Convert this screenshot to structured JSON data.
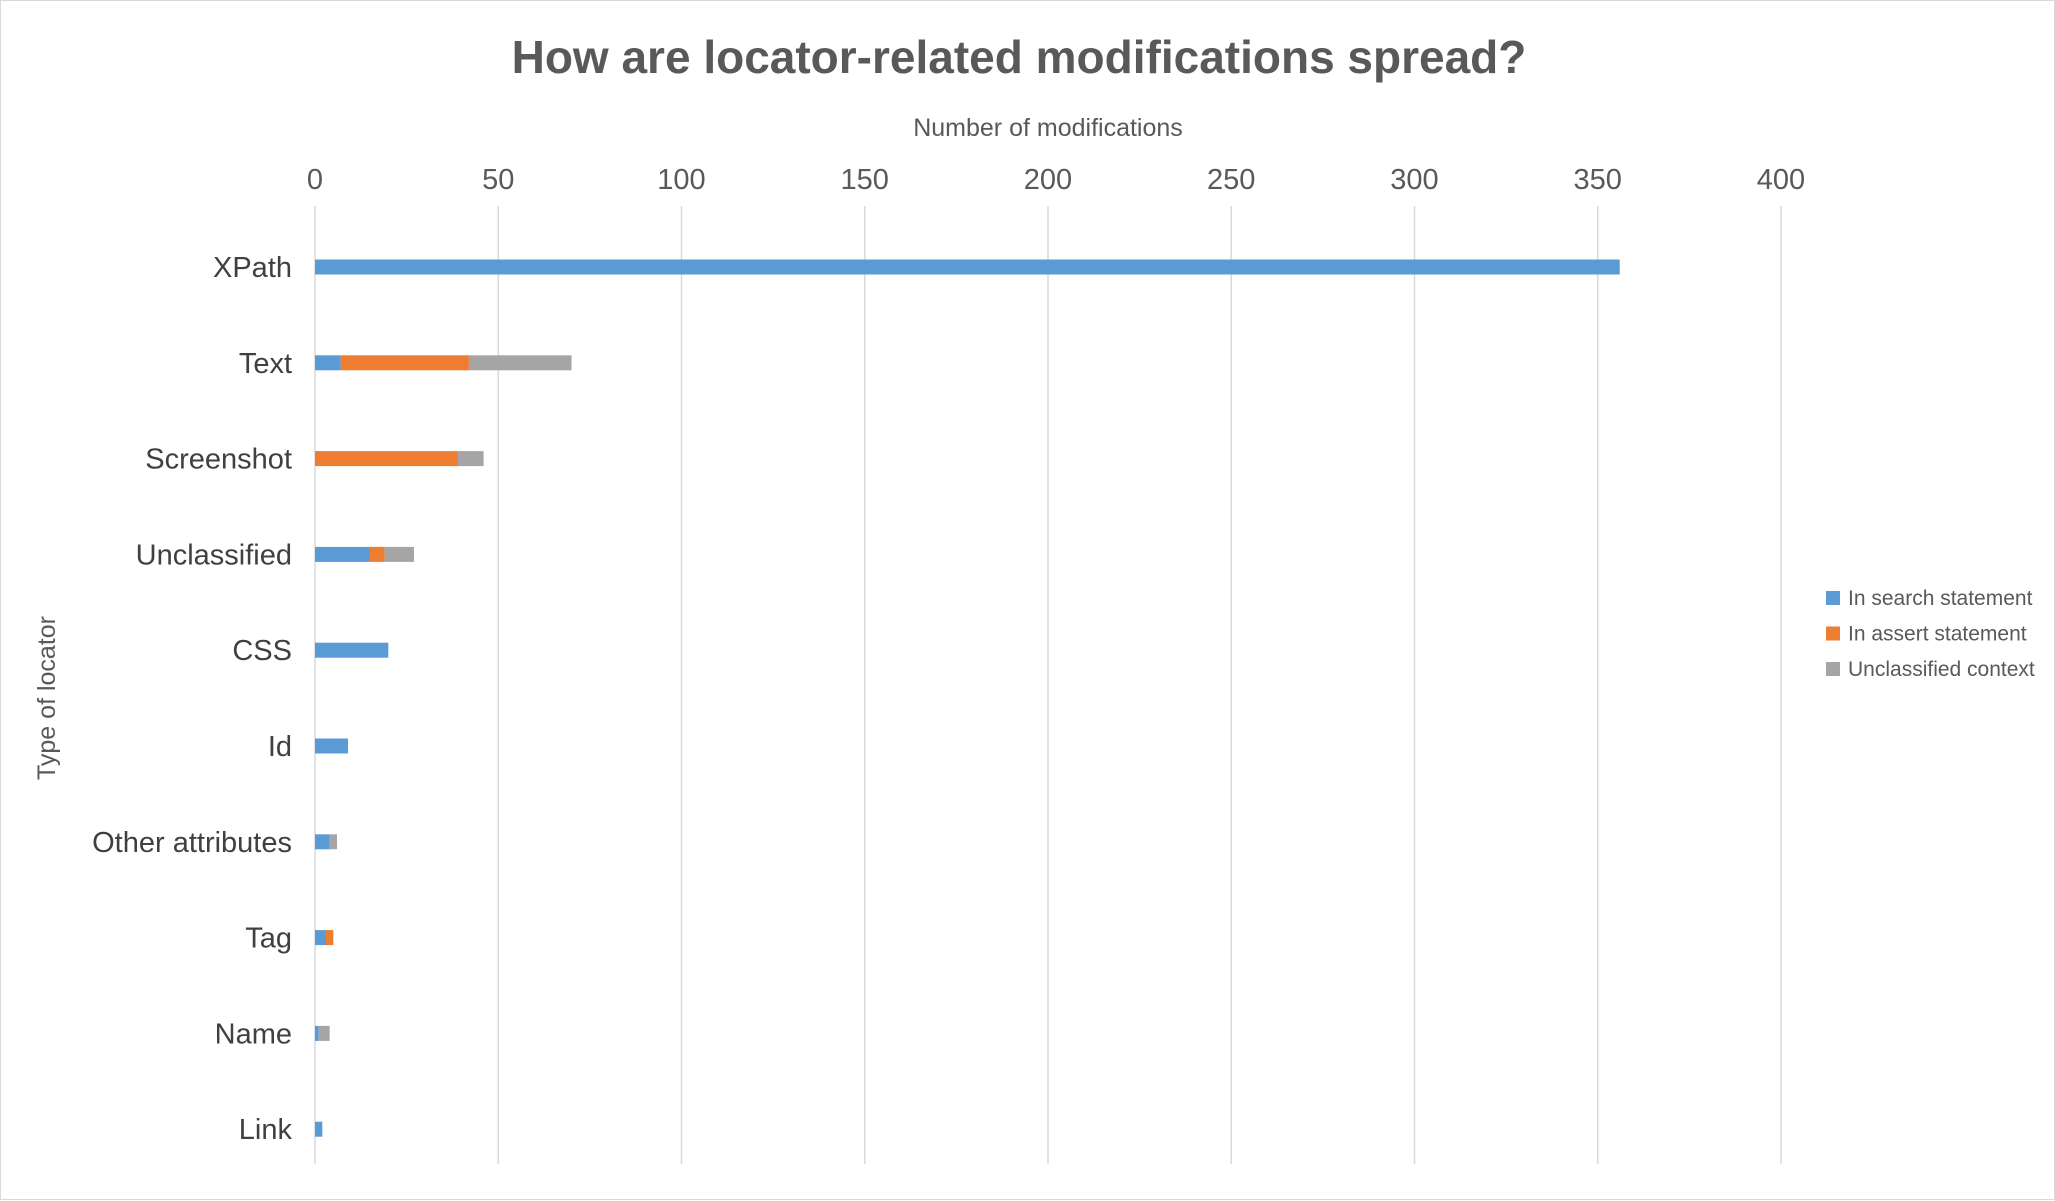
{
  "chart_data": {
    "type": "bar",
    "orientation": "horizontal",
    "stacked": true,
    "title": "How are locator-related modifications spread?",
    "xlabel": "Number of modifications",
    "ylabel": "Type of locator",
    "xlim": [
      0,
      400
    ],
    "xticks": [
      0,
      50,
      100,
      150,
      200,
      250,
      300,
      350,
      400
    ],
    "x_axis_position": "top",
    "grid": true,
    "legend_position": "right",
    "categories": [
      "XPath",
      "Text",
      "Screenshot",
      "Unclassified",
      "CSS",
      "Id",
      "Other attributes",
      "Tag",
      "Name",
      "Link"
    ],
    "series": [
      {
        "name": "In search statement",
        "color": "#5b9bd5",
        "values": [
          356,
          7,
          0,
          15,
          20,
          9,
          4,
          3,
          1,
          2
        ]
      },
      {
        "name": "In assert statement",
        "color": "#ed7d31",
        "values": [
          0,
          35,
          39,
          4,
          0,
          0,
          0,
          2,
          0,
          0
        ]
      },
      {
        "name": "Unclassified context",
        "color": "#a5a5a5",
        "values": [
          0,
          28,
          7,
          8,
          0,
          0,
          2,
          0,
          3,
          0
        ]
      }
    ]
  }
}
